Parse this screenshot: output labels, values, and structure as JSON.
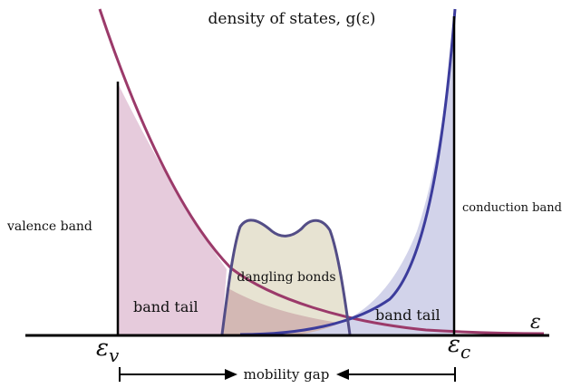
{
  "title": "density of states, g(ε)",
  "labels": {
    "valence_band": "valence band",
    "conduction_band": "conduction band",
    "band_tail_left": "band tail",
    "band_tail_right": "band tail",
    "dangling_bonds": "dangling bonds",
    "energy_axis": "ε",
    "ev_symbol": "ε",
    "ev_subscript": "v",
    "ec_symbol": "ε",
    "ec_subscript": "c",
    "mobility_gap": "mobility gap"
  },
  "colors": {
    "valence_curve": "#9b3a6a",
    "valence_fill": "#e6cbdc",
    "conduction_curve": "#3c3c9c",
    "conduction_fill": "#d2d3ea",
    "dangling_curve": "#534d86",
    "dangling_fill": "#e7e3d2",
    "overlap_fill": "#d3b8b4",
    "axis": "#000000"
  }
}
